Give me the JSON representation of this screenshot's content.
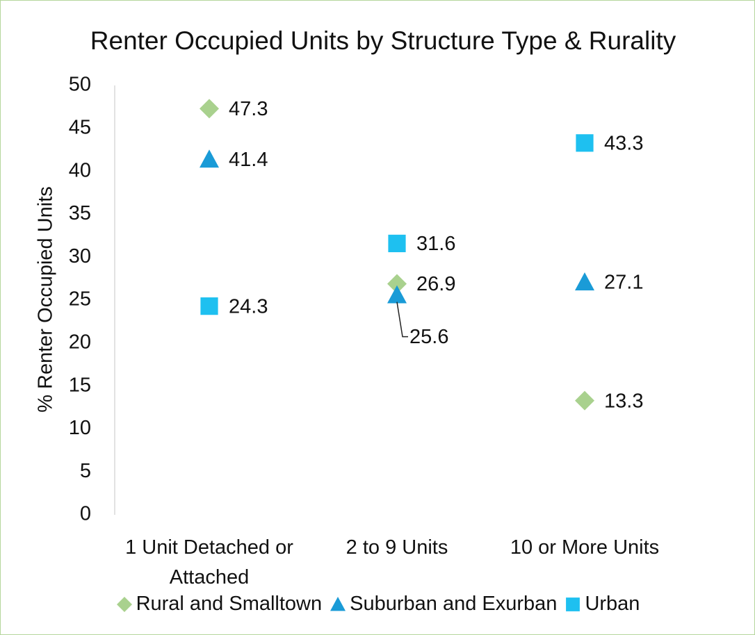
{
  "chart_data": {
    "type": "scatter",
    "title": "Renter Occupied Units by Structure Type & Rurality",
    "y_label": "% Renter Occupied Units",
    "categories": [
      "1 Unit Detached or Attached",
      "2 to 9 Units",
      "10 or More Units"
    ],
    "series": [
      {
        "name": "Rural and Smalltown",
        "color": "#a9d18e",
        "marker": "diamond",
        "values": [
          47.3,
          26.9,
          13.3
        ]
      },
      {
        "name": "Suburban and Exurban",
        "color": "#1a9bd7",
        "marker": "triangle",
        "values": [
          41.4,
          25.6,
          27.1
        ]
      },
      {
        "name": "Urban",
        "color": "#1ec0f0",
        "marker": "square",
        "values": [
          24.3,
          31.6,
          43.3
        ]
      }
    ],
    "ylim": [
      0,
      50
    ],
    "yticks": [
      0,
      5,
      10,
      15,
      20,
      25,
      30,
      35,
      40,
      45,
      50
    ],
    "data_labels": true,
    "legend": "bottom"
  }
}
